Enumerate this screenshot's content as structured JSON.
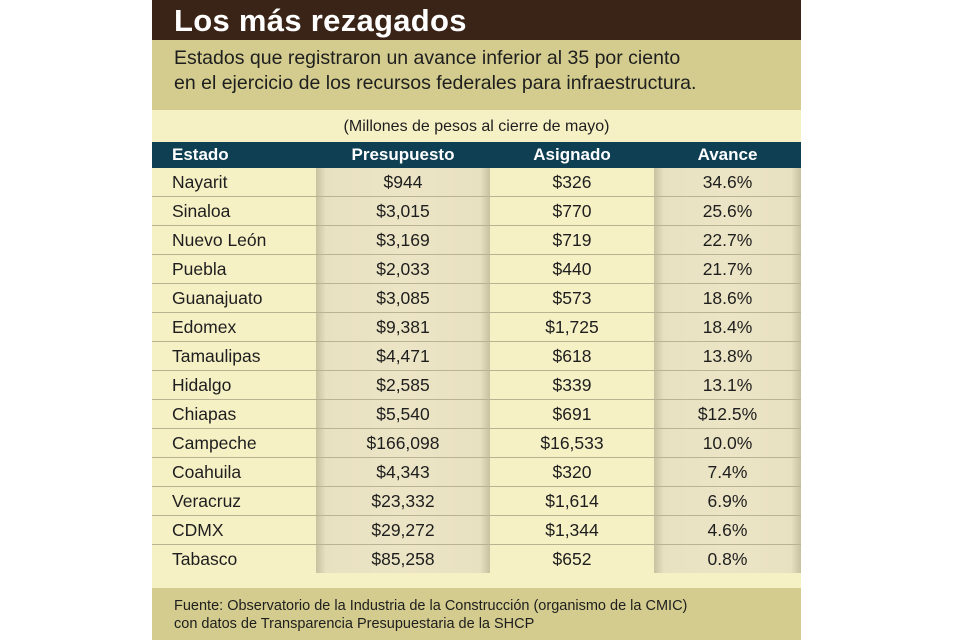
{
  "title": "Los más rezagados",
  "subtitle_line1": "Estados que registraron un avance inferior al 35 por ciento",
  "subtitle_line2": "en el ejercicio de los recursos federales para infraestructura.",
  "unit_note": "(Millones de pesos al cierre de mayo)",
  "columns": [
    "Estado",
    "Presupuesto",
    "Asignado",
    "Avance"
  ],
  "rows": [
    {
      "estado": "Nayarit",
      "presupuesto": "$944",
      "asignado": "$326",
      "avance": "34.6%"
    },
    {
      "estado": "Sinaloa",
      "presupuesto": "$3,015",
      "asignado": "$770",
      "avance": "25.6%"
    },
    {
      "estado": "Nuevo León",
      "presupuesto": "$3,169",
      "asignado": "$719",
      "avance": "22.7%"
    },
    {
      "estado": "Puebla",
      "presupuesto": "$2,033",
      "asignado": "$440",
      "avance": "21.7%"
    },
    {
      "estado": "Guanajuato",
      "presupuesto": "$3,085",
      "asignado": "$573",
      "avance": "18.6%"
    },
    {
      "estado": "Edomex",
      "presupuesto": "$9,381",
      "asignado": "$1,725",
      "avance": "18.4%"
    },
    {
      "estado": "Tamaulipas",
      "presupuesto": "$4,471",
      "asignado": "$618",
      "avance": "13.8%"
    },
    {
      "estado": "Hidalgo",
      "presupuesto": "$2,585",
      "asignado": "$339",
      "avance": "13.1%"
    },
    {
      "estado": "Chiapas",
      "presupuesto": "$5,540",
      "asignado": "$691",
      "avance": "$12.5%"
    },
    {
      "estado": "Campeche",
      "presupuesto": "$166,098",
      "asignado": "$16,533",
      "avance": "10.0%"
    },
    {
      "estado": "Coahuila",
      "presupuesto": "$4,343",
      "asignado": "$320",
      "avance": "7.4%"
    },
    {
      "estado": "Veracruz",
      "presupuesto": "$23,332",
      "asignado": "$1,614",
      "avance": "6.9%"
    },
    {
      "estado": "CDMX",
      "presupuesto": "$29,272",
      "asignado": "$1,344",
      "avance": "4.6%"
    },
    {
      "estado": "Tabasco",
      "presupuesto": "$85,258",
      "asignado": "$652",
      "avance": "0.8%"
    }
  ],
  "footer_line1": "Fuente: Observatorio de la Industria de la Construcción (organismo de la CMIC)",
  "footer_line2": "con datos de Transparencia Presupuestaria de la SHCP",
  "colors": {
    "title_bar": "#3a2418",
    "band": "#d3cc8e",
    "paper": "#f6f0c5",
    "header": "#0f3f53"
  }
}
